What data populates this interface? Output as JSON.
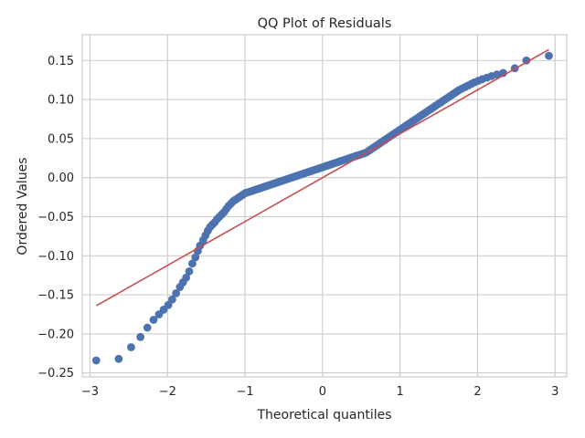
{
  "chart_data": {
    "type": "scatter",
    "title": "QQ Plot of Residuals",
    "xlabel": "Theoretical quantiles",
    "ylabel": "Ordered Values",
    "xlim": [
      -3.1,
      3.15
    ],
    "ylim": [
      -0.255,
      0.183
    ],
    "xticks": [
      -3,
      -2,
      -1,
      0,
      1,
      2,
      3
    ],
    "xtick_labels": [
      "−3",
      "−2",
      "−1",
      "0",
      "1",
      "2",
      "3"
    ],
    "yticks": [
      -0.25,
      -0.2,
      -0.15,
      -0.1,
      -0.05,
      0.0,
      0.05,
      0.1,
      0.15
    ],
    "ytick_labels": [
      "−0.25",
      "−0.20",
      "−0.15",
      "−0.10",
      "−0.05",
      "0.00",
      "0.05",
      "0.10",
      "0.15"
    ],
    "grid": true,
    "point_color": "#4c72b0",
    "line_color": "#c44e52",
    "fit_line": {
      "x": [
        -2.92,
        2.92
      ],
      "y": [
        -0.164,
        0.164
      ]
    },
    "points": {
      "x": [
        -2.92,
        -2.63,
        -2.47,
        -2.35,
        -2.26,
        -2.18,
        -2.11,
        -2.05,
        -1.99,
        -1.94,
        -1.89,
        -1.84,
        -1.8,
        -1.76,
        -1.72,
        -1.68,
        -1.64,
        -1.61,
        -1.58,
        -1.54,
        -1.51,
        -1.48,
        -1.45,
        -1.42,
        -1.39,
        -1.36,
        -1.33,
        -1.3,
        -1.27,
        -1.24,
        -1.21,
        -1.18,
        -1.15,
        -1.12,
        -1.09,
        -1.06,
        -1.03,
        -1.0,
        -0.97,
        -0.94,
        -0.91,
        -0.88,
        -0.85,
        -0.82,
        -0.79,
        -0.76,
        -0.73,
        -0.7,
        -0.67,
        -0.64,
        -0.61,
        -0.58,
        -0.55,
        -0.52,
        -0.49,
        -0.46,
        -0.43,
        -0.4,
        -0.37,
        -0.34,
        -0.31,
        -0.28,
        -0.25,
        -0.22,
        -0.19,
        -0.16,
        -0.13,
        -0.1,
        -0.07,
        -0.04,
        -0.01,
        0.02,
        0.05,
        0.08,
        0.11,
        0.14,
        0.17,
        0.2,
        0.23,
        0.26,
        0.29,
        0.32,
        0.35,
        0.38,
        0.41,
        0.44,
        0.47,
        0.5,
        0.53,
        0.56,
        0.59,
        0.62,
        0.65,
        0.68,
        0.71,
        0.74,
        0.77,
        0.8,
        0.83,
        0.86,
        0.89,
        0.92,
        0.95,
        0.98,
        1.01,
        1.04,
        1.07,
        1.1,
        1.13,
        1.16,
        1.19,
        1.22,
        1.25,
        1.28,
        1.31,
        1.34,
        1.37,
        1.4,
        1.43,
        1.46,
        1.49,
        1.52,
        1.55,
        1.58,
        1.61,
        1.64,
        1.67,
        1.7,
        1.73,
        1.76,
        1.8,
        1.84,
        1.88,
        1.92,
        1.96,
        2.01,
        2.06,
        2.12,
        2.18,
        2.25,
        2.33,
        2.48,
        2.63,
        2.92
      ],
      "y": [
        -0.234,
        -0.232,
        -0.217,
        -0.204,
        -0.192,
        -0.182,
        -0.175,
        -0.169,
        -0.163,
        -0.156,
        -0.148,
        -0.14,
        -0.134,
        -0.128,
        -0.12,
        -0.11,
        -0.102,
        -0.094,
        -0.087,
        -0.08,
        -0.074,
        -0.068,
        -0.063,
        -0.06,
        -0.057,
        -0.053,
        -0.05,
        -0.047,
        -0.044,
        -0.04,
        -0.036,
        -0.033,
        -0.03,
        -0.028,
        -0.026,
        -0.024,
        -0.022,
        -0.02,
        -0.019,
        -0.018,
        -0.017,
        -0.016,
        -0.015,
        -0.014,
        -0.013,
        -0.012,
        -0.011,
        -0.01,
        -0.009,
        -0.008,
        -0.007,
        -0.006,
        -0.005,
        -0.004,
        -0.003,
        -0.002,
        -0.001,
        0.0,
        0.001,
        0.002,
        0.003,
        0.004,
        0.005,
        0.006,
        0.007,
        0.008,
        0.009,
        0.01,
        0.011,
        0.012,
        0.013,
        0.014,
        0.015,
        0.016,
        0.017,
        0.018,
        0.019,
        0.02,
        0.021,
        0.022,
        0.023,
        0.024,
        0.025,
        0.026,
        0.027,
        0.028,
        0.029,
        0.03,
        0.031,
        0.032,
        0.034,
        0.036,
        0.038,
        0.04,
        0.042,
        0.044,
        0.046,
        0.048,
        0.05,
        0.052,
        0.054,
        0.056,
        0.058,
        0.06,
        0.062,
        0.064,
        0.066,
        0.068,
        0.07,
        0.072,
        0.074,
        0.076,
        0.078,
        0.08,
        0.082,
        0.084,
        0.086,
        0.088,
        0.09,
        0.092,
        0.094,
        0.096,
        0.098,
        0.1,
        0.102,
        0.104,
        0.106,
        0.108,
        0.11,
        0.112,
        0.114,
        0.116,
        0.118,
        0.12,
        0.122,
        0.124,
        0.126,
        0.128,
        0.13,
        0.132,
        0.134,
        0.14,
        0.15,
        0.156
      ]
    }
  }
}
